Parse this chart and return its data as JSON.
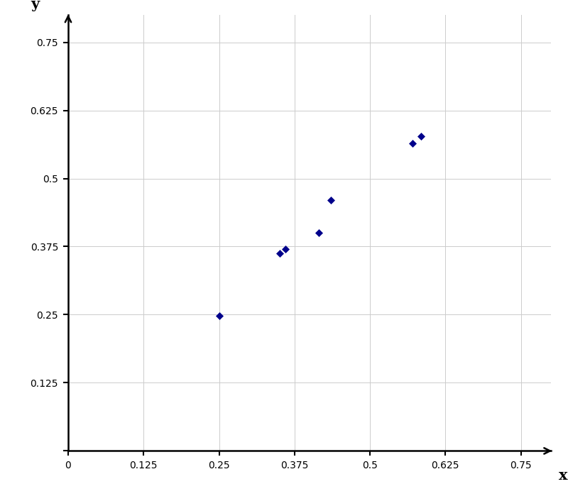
{
  "points_x": [
    0.25,
    0.35,
    0.36,
    0.415,
    0.435,
    0.57,
    0.585
  ],
  "points_y": [
    0.248,
    0.362,
    0.37,
    0.4,
    0.46,
    0.565,
    0.578
  ],
  "marker_color": "#00008B",
  "marker_size": 5,
  "xlim": [
    0,
    0.8
  ],
  "ylim": [
    0,
    0.8
  ],
  "xticks": [
    0,
    0.125,
    0.25,
    0.375,
    0.5,
    0.625,
    0.75
  ],
  "yticks": [
    0,
    0.125,
    0.25,
    0.375,
    0.5,
    0.625,
    0.75
  ],
  "xlabel": "x",
  "ylabel": "y",
  "grid_color": "#cccccc",
  "grid_linewidth": 0.7,
  "tick_label_fontsize": 13,
  "spine_linewidth": 1.8
}
